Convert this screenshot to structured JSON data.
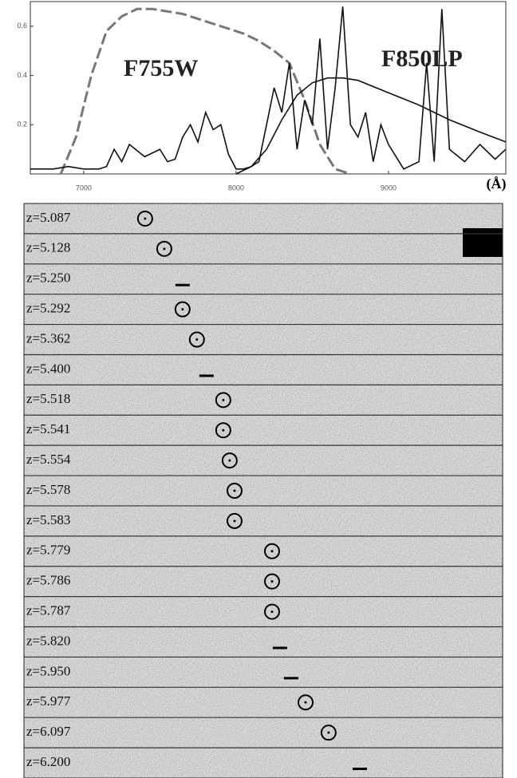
{
  "chart_data": {
    "type": "line",
    "x_unit": "(Å)",
    "xlim": [
      6650,
      9770
    ],
    "ylim": [
      0,
      0.7
    ],
    "xticks": [
      7000,
      8000,
      9000
    ],
    "yticks": [
      0.2,
      0.4,
      0.6
    ],
    "series": [
      {
        "name": "F755W",
        "color": "#777777",
        "dash": true,
        "x": [
          6850,
          6950,
          7050,
          7150,
          7250,
          7350,
          7450,
          7550,
          7650,
          7750,
          7850,
          7950,
          8050,
          8150,
          8250,
          8350,
          8450,
          8550,
          8650,
          8750
        ],
        "values": [
          0,
          0.15,
          0.4,
          0.58,
          0.64,
          0.67,
          0.67,
          0.66,
          0.65,
          0.63,
          0.61,
          0.59,
          0.57,
          0.54,
          0.5,
          0.45,
          0.3,
          0.12,
          0.02,
          0
        ]
      },
      {
        "name": "F850LP",
        "color": "#111111",
        "dash": false,
        "x": [
          8000,
          8100,
          8200,
          8300,
          8400,
          8500,
          8600,
          8700,
          8800,
          9000,
          9200,
          9400,
          9600,
          9770
        ],
        "values": [
          0,
          0.03,
          0.1,
          0.22,
          0.32,
          0.37,
          0.39,
          0.39,
          0.38,
          0.33,
          0.28,
          0.22,
          0.17,
          0.13
        ]
      },
      {
        "color": "#111111",
        "dash": false,
        "x": [
          6650,
          6800,
          6900,
          7000,
          7100,
          7150,
          7200,
          7250,
          7300,
          7400,
          7500,
          7550,
          7600,
          7650,
          7700,
          7750,
          7800,
          7850,
          7900,
          7950,
          8000,
          8050,
          8100,
          8150,
          8200,
          8250,
          8300,
          8350,
          8400,
          8450,
          8500,
          8550,
          8600,
          8650,
          8700,
          8750,
          8800,
          8850,
          8900,
          8950,
          9000,
          9100,
          9200,
          9250,
          9300,
          9350,
          9400,
          9500,
          9600,
          9700,
          9770
        ],
        "values": [
          0.02,
          0.02,
          0.03,
          0.02,
          0.02,
          0.03,
          0.1,
          0.05,
          0.12,
          0.07,
          0.1,
          0.05,
          0.06,
          0.15,
          0.2,
          0.13,
          0.25,
          0.18,
          0.2,
          0.08,
          0.02,
          0.02,
          0.03,
          0.05,
          0.2,
          0.35,
          0.25,
          0.45,
          0.1,
          0.3,
          0.2,
          0.55,
          0.1,
          0.35,
          0.68,
          0.2,
          0.15,
          0.25,
          0.05,
          0.2,
          0.12,
          0.02,
          0.05,
          0.45,
          0.05,
          0.67,
          0.1,
          0.05,
          0.12,
          0.06,
          0.1
        ]
      }
    ]
  },
  "strips": [
    {
      "label": "z=5.087",
      "marker": "circle",
      "x": 7403
    },
    {
      "label": "z=5.128",
      "marker": "circle",
      "x": 7529
    },
    {
      "label": "z=5.250",
      "marker": "bar",
      "x": 7649
    },
    {
      "label": "z=5.292",
      "marker": "circle",
      "x": 7649
    },
    {
      "label": "z=5.362",
      "marker": "circle",
      "x": 7743
    },
    {
      "label": "z=5.400",
      "marker": "bar",
      "x": 7806
    },
    {
      "label": "z=5.518",
      "marker": "circle",
      "x": 7916
    },
    {
      "label": "z=5.541",
      "marker": "circle",
      "x": 7916
    },
    {
      "label": "z=5.554",
      "marker": "circle",
      "x": 7958
    },
    {
      "label": "z=5.578",
      "marker": "circle",
      "x": 7990
    },
    {
      "label": "z=5.583",
      "marker": "circle",
      "x": 7990
    },
    {
      "label": "z=5.779",
      "marker": "circle",
      "x": 8236
    },
    {
      "label": "z=5.786",
      "marker": "circle",
      "x": 8236
    },
    {
      "label": "z=5.787",
      "marker": "circle",
      "x": 8236
    },
    {
      "label": "z=5.820",
      "marker": "bar",
      "x": 8288
    },
    {
      "label": "z=5.950",
      "marker": "bar",
      "x": 8361
    },
    {
      "label": "z=5.977",
      "marker": "circle",
      "x": 8456
    },
    {
      "label": "z=6.097",
      "marker": "circle",
      "x": 8607
    },
    {
      "label": "z=6.200",
      "marker": "bar",
      "x": 8812
    }
  ]
}
